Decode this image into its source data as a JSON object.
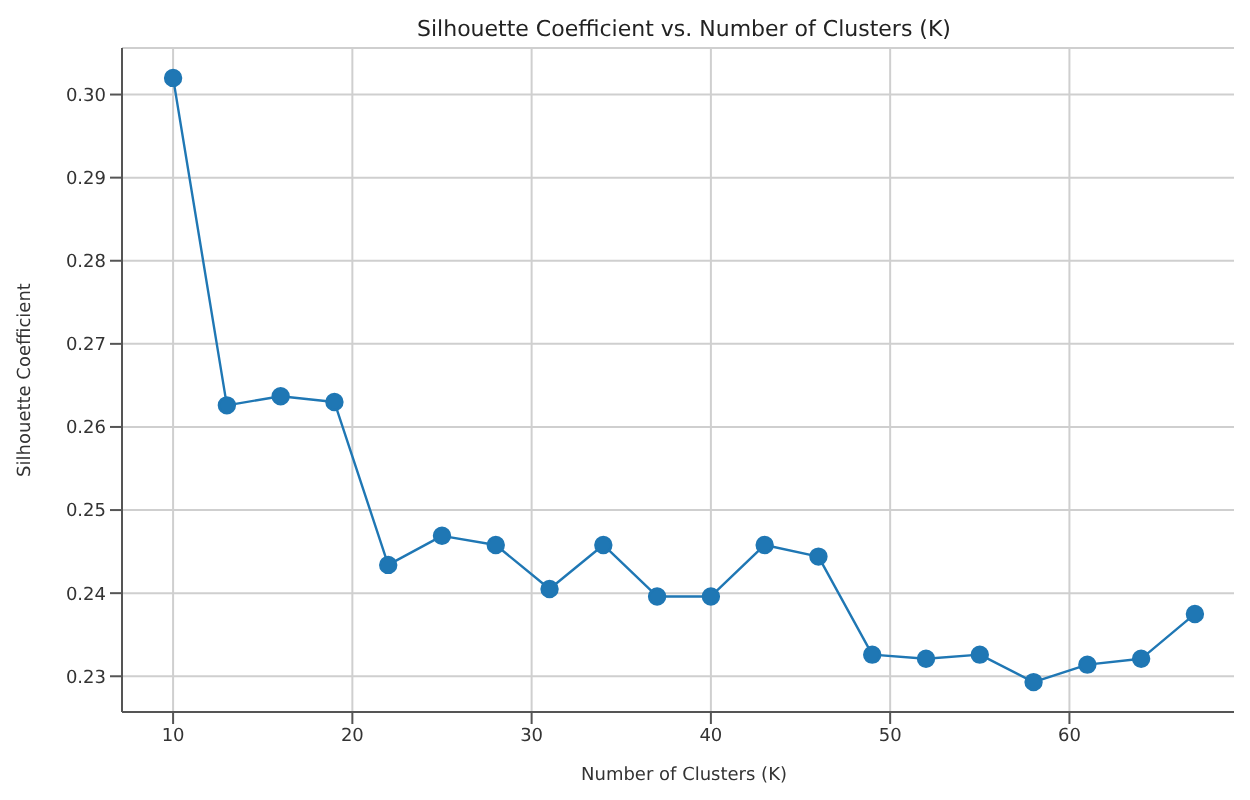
{
  "chart_data": {
    "type": "line",
    "title": "Silhouette Coefficient vs. Number of Clusters (K)",
    "xlabel": "Number of Clusters (K)",
    "ylabel": "Silhouette Coefficient",
    "x": [
      10,
      13,
      16,
      19,
      22,
      25,
      28,
      31,
      34,
      37,
      40,
      43,
      46,
      49,
      52,
      55,
      58,
      61,
      64,
      67
    ],
    "series": [
      {
        "color": "#1f77b4",
        "values": [
          0.302,
          0.2626,
          0.2637,
          0.263,
          0.2434,
          0.2469,
          0.2458,
          0.2405,
          0.2458,
          0.2396,
          0.2396,
          0.2458,
          0.2444,
          0.2326,
          0.2321,
          0.2326,
          0.2293,
          0.2314,
          0.2321,
          0.2375
        ]
      }
    ],
    "xlim": [
      7.15,
      69.85
    ],
    "xticks": [
      10,
      20,
      30,
      40,
      50,
      60
    ],
    "ylim": [
      0.2257,
      0.3056
    ],
    "yticks": [
      {
        "value": 0.23,
        "label": "0.23"
      },
      {
        "value": 0.24,
        "label": "0.24"
      },
      {
        "value": 0.25,
        "label": "0.25"
      },
      {
        "value": 0.26,
        "label": "0.26"
      },
      {
        "value": 0.27,
        "label": "0.27"
      },
      {
        "value": 0.28,
        "label": "0.28"
      },
      {
        "value": 0.29,
        "label": "0.29"
      },
      {
        "value": 0.3,
        "label": "0.30"
      }
    ],
    "grid": true,
    "marker": "circle",
    "line_style": "solid"
  }
}
